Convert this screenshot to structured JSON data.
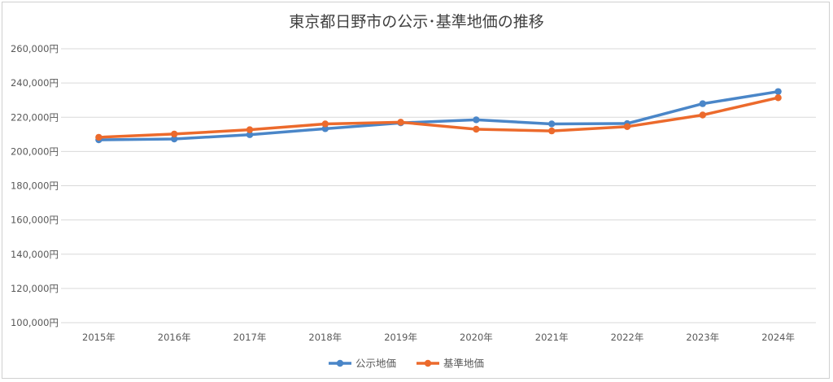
{
  "chart_data": {
    "type": "line",
    "title": "東京都日野市の公示･基準地価の推移",
    "categories": [
      "2015年",
      "2016年",
      "2017年",
      "2018年",
      "2019年",
      "2020年",
      "2021年",
      "2022年",
      "2023年",
      "2024年"
    ],
    "y_tick_labels": [
      "100,000円",
      "120,000円",
      "140,000円",
      "160,000円",
      "180,000円",
      "200,000円",
      "220,000円",
      "240,000円",
      "260,000円"
    ],
    "y_ticks": [
      100000,
      120000,
      140000,
      160000,
      180000,
      200000,
      220000,
      240000,
      260000
    ],
    "ylim": [
      100000,
      260000
    ],
    "grid": true,
    "legend_position": "bottom",
    "series": [
      {
        "name": "公示地価",
        "color": "#4a86c8",
        "values": [
          206800,
          207300,
          209800,
          213300,
          216700,
          218500,
          216100,
          216300,
          227900,
          235000
        ]
      },
      {
        "name": "基準地価",
        "color": "#ec6a2c",
        "values": [
          208300,
          210200,
          212700,
          216100,
          217100,
          213000,
          212000,
          214500,
          221300,
          231400
        ]
      }
    ]
  }
}
